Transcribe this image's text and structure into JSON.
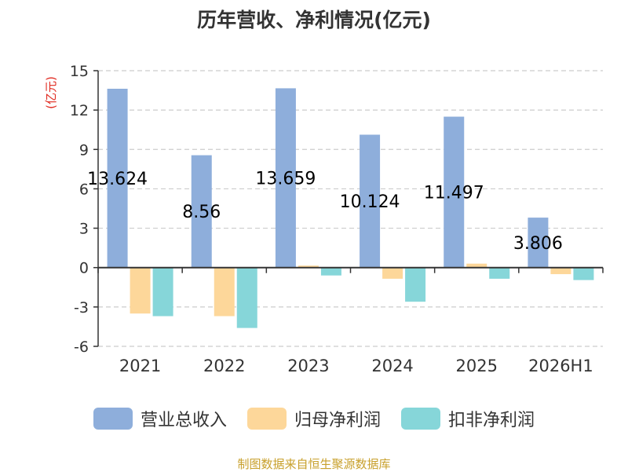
{
  "chart_data": {
    "type": "bar",
    "title": "历年营收、净利情况(亿元)",
    "ylabel": "(亿元)",
    "xlabel": "",
    "categories": [
      "2021",
      "2022",
      "2023",
      "2024",
      "2025",
      "2026H1"
    ],
    "series": [
      {
        "name": "营业总收入",
        "color": "#8eaedb",
        "values": [
          13.624,
          8.56,
          13.659,
          10.124,
          11.497,
          3.806
        ],
        "labels": [
          "13.624",
          "8.56",
          "13.659",
          "10.124",
          "11.497",
          "3.806"
        ]
      },
      {
        "name": "归母净利润",
        "color": "#fdd79a",
        "values": [
          -3.5,
          -3.7,
          0.15,
          -0.85,
          0.3,
          -0.5
        ]
      },
      {
        "name": "扣非净利润",
        "color": "#86d6d9",
        "values": [
          -3.7,
          -4.6,
          -0.6,
          -2.6,
          -0.85,
          -0.95
        ]
      }
    ],
    "ylim": [
      -6,
      15
    ],
    "yticks": [
      15,
      12,
      9,
      6,
      3,
      0,
      -3,
      -6
    ],
    "grid": true,
    "legend_position": "bottom"
  },
  "footer": {
    "source": "制图数据来自恒生聚源数据库"
  },
  "colors": {
    "ylabel": "#e0281e",
    "axis": "#333333",
    "grid": "#cccccc",
    "source": "#c8a02c"
  }
}
